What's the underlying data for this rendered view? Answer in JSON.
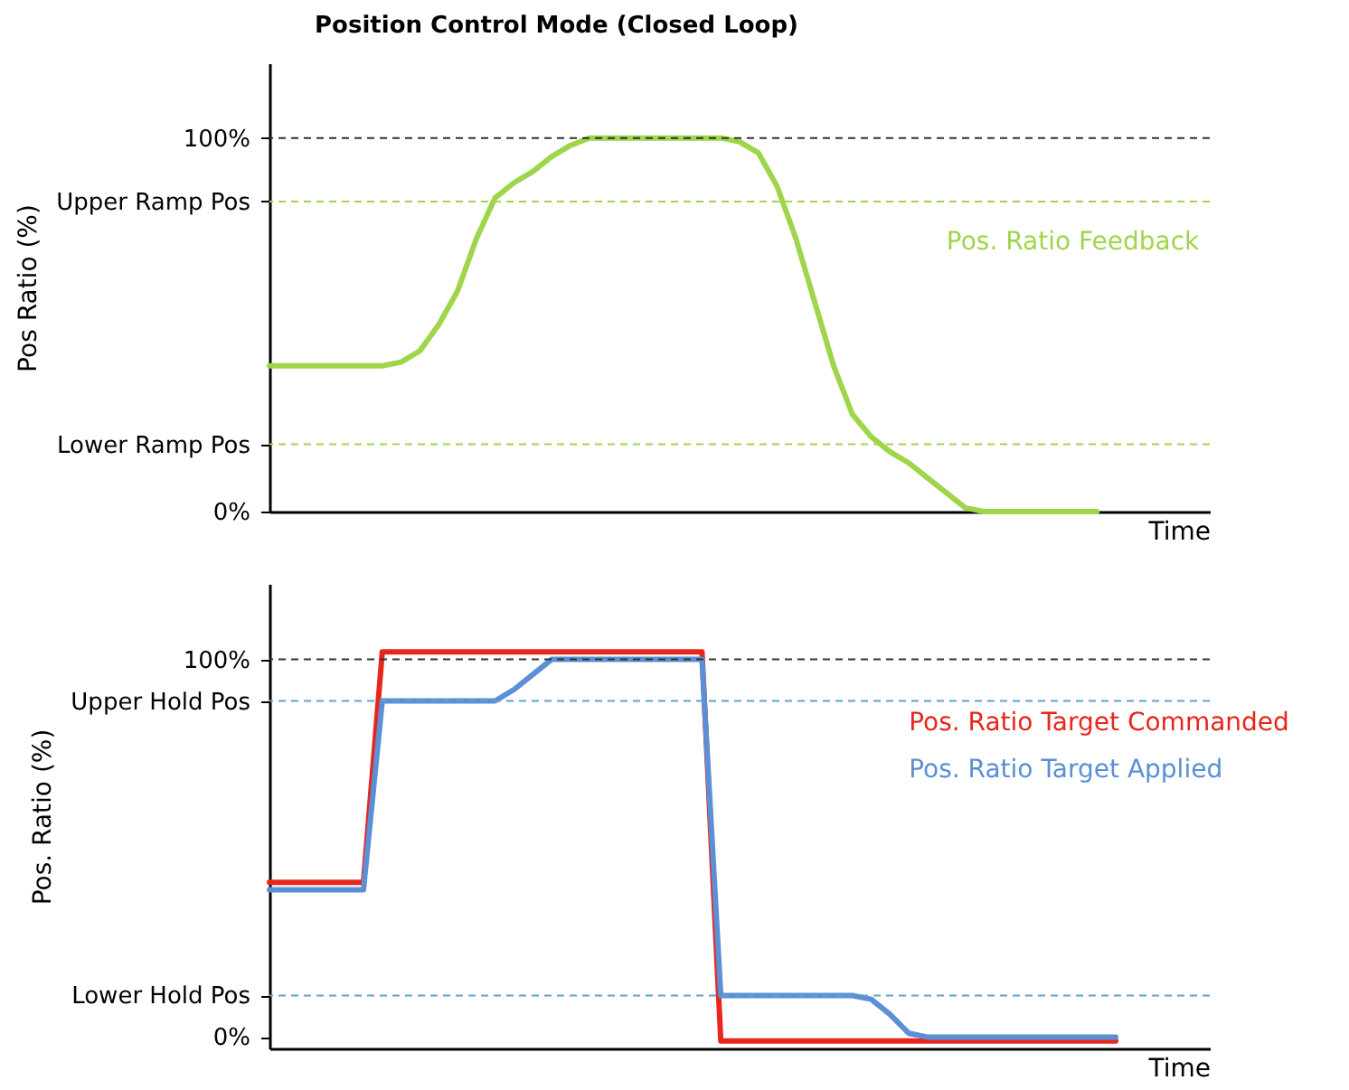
{
  "chart_data": [
    {
      "type": "line",
      "title": "Position Control Mode (Closed Loop)",
      "xlabel": "Time",
      "ylabel": "Pos Ratio (%)",
      "categories": [
        null,
        null,
        null,
        null,
        null,
        null,
        null,
        null,
        null,
        null,
        null,
        null,
        null,
        null,
        null,
        null,
        null,
        null,
        null,
        null,
        null,
        null,
        null,
        null,
        null,
        null,
        null,
        null,
        null,
        null,
        null,
        null,
        null,
        null,
        null,
        null,
        null,
        null,
        null,
        null,
        null,
        null,
        null,
        null,
        null,
        null,
        null,
        null,
        null,
        null,
        null
      ],
      "ylim": [
        0,
        120
      ],
      "yticks": [
        {
          "value": 0,
          "label": "0%"
        },
        {
          "value": 18,
          "label": "Lower Ramp Pos"
        },
        {
          "value": 83,
          "label": "Upper Ramp Pos"
        },
        {
          "value": 100,
          "label": "100%"
        }
      ],
      "tick_labels": "y",
      "grid": false,
      "legend": false,
      "marker": "none",
      "line_style": "solid",
      "series": [
        {
          "name": "Pos. Ratio Feedback",
          "color": "#9fd54a",
          "values": [
            39,
            39,
            39,
            39,
            39,
            39,
            39,
            40,
            43,
            50,
            59,
            73,
            84,
            88,
            91,
            95,
            98,
            100,
            100,
            100,
            100,
            100,
            100,
            100,
            100,
            99,
            96,
            87,
            73,
            56,
            39,
            26,
            20,
            16,
            13,
            9,
            5,
            1,
            0,
            0,
            0,
            0,
            0,
            0,
            0,
            null,
            null,
            null,
            null,
            null,
            null
          ]
        }
      ],
      "ref_lines": [
        {
          "axis": "y",
          "value": 100,
          "color": "#333333",
          "line_style": "dashed"
        },
        {
          "axis": "y",
          "value": 83,
          "color": "#9fd54a",
          "line_style": "dashed"
        },
        {
          "axis": "y",
          "value": 18,
          "color": "#9fd54a",
          "line_style": "dashed"
        }
      ]
    },
    {
      "type": "line",
      "xlabel": "Time",
      "ylabel": "Pos. Ratio (%)",
      "categories": [
        null,
        null,
        null,
        null,
        null,
        null,
        null,
        null,
        null,
        null,
        null,
        null,
        null,
        null,
        null,
        null,
        null,
        null,
        null,
        null,
        null,
        null,
        null,
        null,
        null,
        null,
        null,
        null,
        null,
        null,
        null,
        null,
        null,
        null,
        null,
        null,
        null,
        null,
        null,
        null,
        null,
        null,
        null,
        null,
        null,
        null,
        null,
        null,
        null,
        null,
        null
      ],
      "ylim": [
        -3,
        120
      ],
      "yticks": [
        {
          "value": 0,
          "label": "0%"
        },
        {
          "value": 11,
          "label": "Lower Hold Pos"
        },
        {
          "value": 89,
          "label": "Upper Hold Pos"
        },
        {
          "value": 100,
          "label": "100%"
        }
      ],
      "tick_labels": "y",
      "grid": false,
      "legend": false,
      "marker": "none",
      "line_style": "solid",
      "series": [
        {
          "name": "Pos. Ratio Target Commanded",
          "color": "#e8261c",
          "values": [
            41,
            41,
            41,
            41,
            41,
            41,
            102,
            102,
            102,
            102,
            102,
            102,
            102,
            102,
            102,
            102,
            102,
            102,
            102,
            102,
            102,
            102,
            102,
            102,
            -1,
            -1,
            -1,
            -1,
            -1,
            -1,
            -1,
            -1,
            -1,
            -1,
            -1,
            -1,
            -1,
            -1,
            -1,
            -1,
            -1,
            -1,
            -1,
            -1,
            -1,
            -1,
            null,
            null,
            null,
            null,
            null
          ]
        },
        {
          "name": "Pos. Ratio Target Applied",
          "color": "#5b8fd6",
          "values": [
            39,
            39,
            39,
            39,
            39,
            39,
            89,
            89,
            89,
            89,
            89,
            89,
            89,
            92,
            96,
            100,
            100,
            100,
            100,
            100,
            100,
            100,
            100,
            100,
            11,
            11,
            11,
            11,
            11,
            11,
            11,
            11,
            10,
            6,
            1,
            0,
            0,
            0,
            0,
            0,
            0,
            0,
            0,
            0,
            0,
            0,
            null,
            null,
            null,
            null,
            null
          ]
        }
      ],
      "ref_lines": [
        {
          "axis": "y",
          "value": 100,
          "color": "#333333",
          "line_style": "dashed"
        },
        {
          "axis": "y",
          "value": 89,
          "color": "#5ba3d0",
          "line_style": "dashed"
        },
        {
          "axis": "y",
          "value": 11,
          "color": "#5ba3d0",
          "line_style": "dashed"
        }
      ]
    }
  ]
}
